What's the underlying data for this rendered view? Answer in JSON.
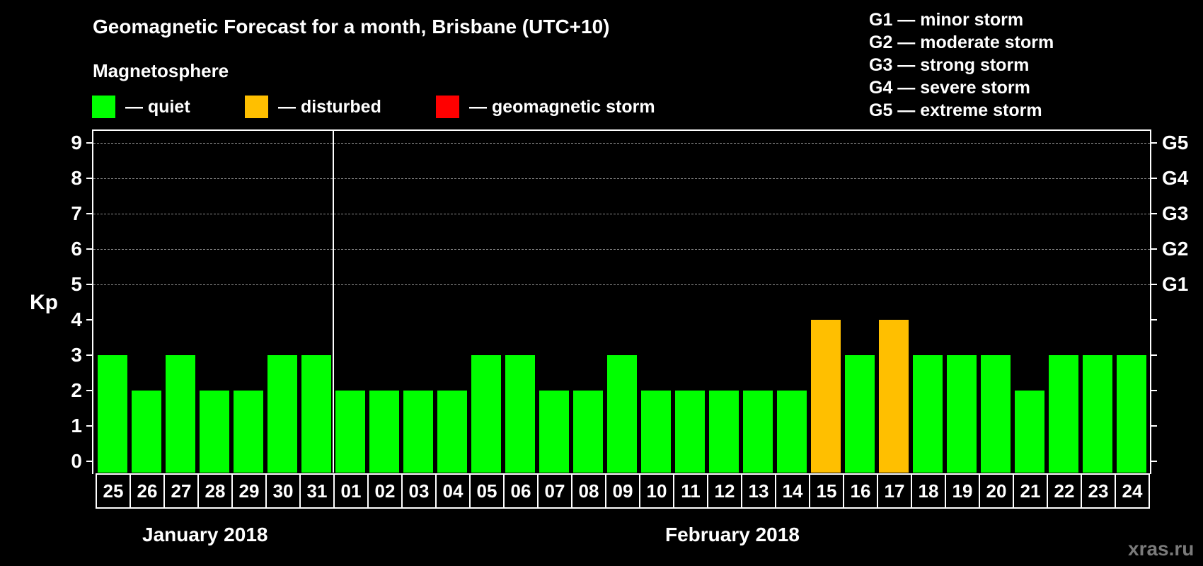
{
  "header": {
    "title": "Geomagnetic Forecast for a month, Brisbane (UTC+10)",
    "subtitle": "Magnetosphere"
  },
  "legend": {
    "items": [
      {
        "label": "— quiet",
        "color": "#00FF00"
      },
      {
        "label": "— disturbed",
        "color": "#FFBF00"
      },
      {
        "label": "— geomagnetic storm",
        "color": "#FF0000"
      }
    ]
  },
  "storm_scale": [
    "G1 — minor storm",
    "G2 — moderate storm",
    "G3 — strong storm",
    "G4 — severe storm",
    "G5 — extreme storm"
  ],
  "axis": {
    "ylabel": "Kp",
    "yticks": [
      "0",
      "1",
      "2",
      "3",
      "4",
      "5",
      "6",
      "7",
      "8",
      "9"
    ],
    "right_labels": {
      "5": "G1",
      "6": "G2",
      "7": "G3",
      "8": "G4",
      "9": "G5"
    }
  },
  "months": [
    "January 2018",
    "February 2018"
  ],
  "watermark": "xras.ru",
  "chart_data": {
    "type": "bar",
    "title": "Geomagnetic Forecast for a month, Brisbane (UTC+10)",
    "xlabel": "",
    "ylabel": "Kp",
    "ylim": [
      0,
      9
    ],
    "grid": "dashed horizontal at Kp 5-9",
    "categories": [
      "25",
      "26",
      "27",
      "28",
      "29",
      "30",
      "31",
      "01",
      "02",
      "03",
      "04",
      "05",
      "06",
      "07",
      "08",
      "09",
      "10",
      "11",
      "12",
      "13",
      "14",
      "15",
      "16",
      "17",
      "18",
      "19",
      "20",
      "21",
      "22",
      "23",
      "24"
    ],
    "values": [
      3,
      2,
      3,
      2,
      2,
      3,
      3,
      2,
      2,
      2,
      2,
      3,
      3,
      2,
      2,
      3,
      2,
      2,
      2,
      2,
      2,
      4,
      3,
      4,
      3,
      3,
      3,
      2,
      3,
      3,
      3
    ],
    "colors": [
      "quiet",
      "quiet",
      "quiet",
      "quiet",
      "quiet",
      "quiet",
      "quiet",
      "quiet",
      "quiet",
      "quiet",
      "quiet",
      "quiet",
      "quiet",
      "quiet",
      "quiet",
      "quiet",
      "quiet",
      "quiet",
      "quiet",
      "quiet",
      "quiet",
      "disturbed",
      "quiet",
      "disturbed",
      "quiet",
      "quiet",
      "quiet",
      "quiet",
      "quiet",
      "quiet",
      "quiet"
    ],
    "x_groups": [
      {
        "label": "January 2018",
        "categories": [
          "25",
          "26",
          "27",
          "28",
          "29",
          "30",
          "31"
        ]
      },
      {
        "label": "February 2018",
        "categories": [
          "01",
          "02",
          "03",
          "04",
          "05",
          "06",
          "07",
          "08",
          "09",
          "10",
          "11",
          "12",
          "13",
          "14",
          "15",
          "16",
          "17",
          "18",
          "19",
          "20",
          "21",
          "22",
          "23",
          "24"
        ]
      }
    ],
    "legend": [
      "quiet",
      "disturbed",
      "geomagnetic storm"
    ],
    "right_axis": {
      "5": "G1",
      "6": "G2",
      "7": "G3",
      "8": "G4",
      "9": "G5"
    }
  }
}
